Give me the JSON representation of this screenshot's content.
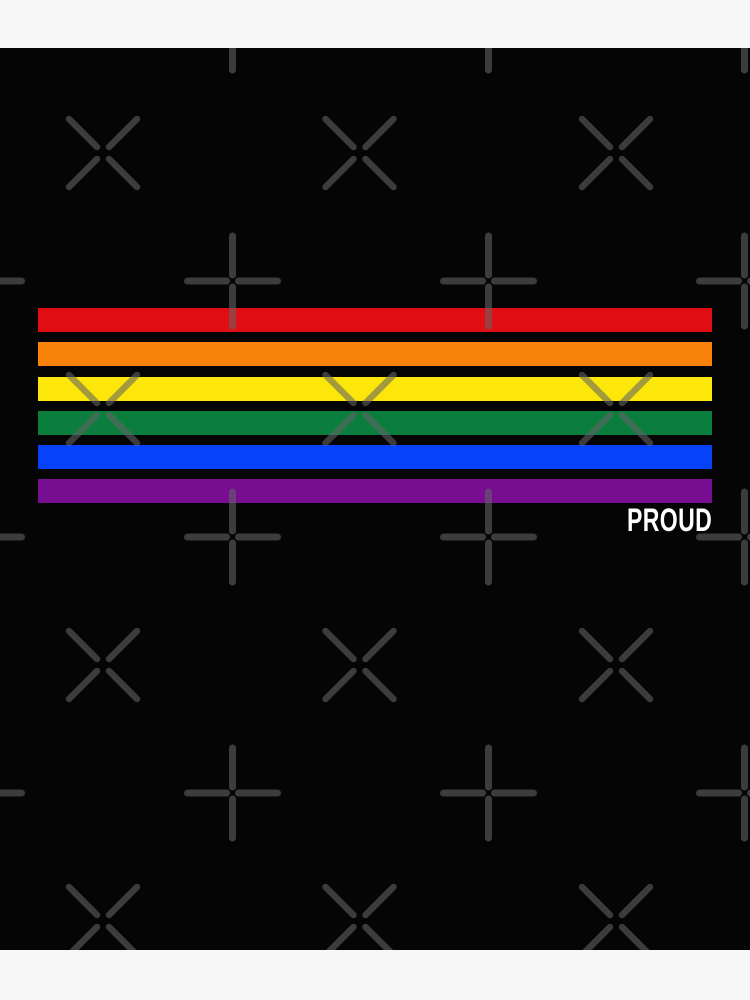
{
  "page": {
    "margin_color": "#f7f7f7"
  },
  "artwork": {
    "label": "PROUD",
    "label_color": "#ffffff",
    "background_color": "#050505",
    "stripes": [
      {
        "name": "red",
        "color": "#e00d12"
      },
      {
        "name": "orange",
        "color": "#f9820a"
      },
      {
        "name": "yellow",
        "color": "#fde70a"
      },
      {
        "name": "green",
        "color": "#0b7e3e"
      },
      {
        "name": "blue",
        "color": "#0443f8"
      },
      {
        "name": "purple",
        "color": "#770e91"
      }
    ]
  },
  "watermark": {
    "marks": [
      "x-mark-icon",
      "plus-mark-icon"
    ],
    "color": "#646464",
    "opacity": 0.58
  }
}
